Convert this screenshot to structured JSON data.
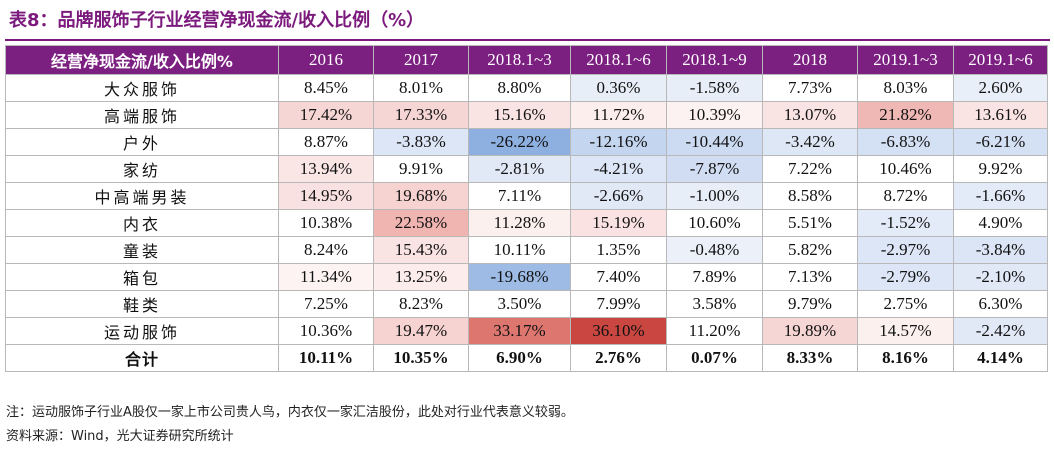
{
  "title": "表8：品牌服饰子行业经营净现金流/收入比例（%）",
  "table": {
    "header": [
      "经营净现金流/收入比例%",
      "2016",
      "2017",
      "2018.1~3",
      "2018.1~6",
      "2018.1~9",
      "2018",
      "2019.1~3",
      "2019.1~6"
    ],
    "rows": [
      {
        "label": "大众服饰",
        "values": [
          "8.45%",
          "8.01%",
          "8.80%",
          "0.36%",
          "-1.58%",
          "7.73%",
          "8.03%",
          "2.60%"
        ]
      },
      {
        "label": "高端服饰",
        "values": [
          "17.42%",
          "17.33%",
          "15.16%",
          "11.72%",
          "10.39%",
          "13.07%",
          "21.82%",
          "13.61%"
        ]
      },
      {
        "label": "户外",
        "values": [
          "8.87%",
          "-3.83%",
          "-26.22%",
          "-12.16%",
          "-10.44%",
          "-3.42%",
          "-6.83%",
          "-6.21%"
        ]
      },
      {
        "label": "家纺",
        "values": [
          "13.94%",
          "9.91%",
          "-2.81%",
          "-4.21%",
          "-7.87%",
          "7.22%",
          "10.46%",
          "9.92%"
        ]
      },
      {
        "label": "中高端男装",
        "values": [
          "14.95%",
          "19.68%",
          "7.11%",
          "-2.66%",
          "-1.00%",
          "8.58%",
          "8.72%",
          "-1.66%"
        ]
      },
      {
        "label": "内衣",
        "values": [
          "10.38%",
          "22.58%",
          "11.28%",
          "15.19%",
          "10.60%",
          "5.51%",
          "-1.52%",
          "4.90%"
        ]
      },
      {
        "label": "童装",
        "values": [
          "8.24%",
          "15.43%",
          "10.11%",
          "1.35%",
          "-0.48%",
          "5.82%",
          "-2.97%",
          "-3.84%"
        ]
      },
      {
        "label": "箱包",
        "values": [
          "11.34%",
          "13.25%",
          "-19.68%",
          "7.40%",
          "7.89%",
          "7.13%",
          "-2.79%",
          "-2.10%"
        ]
      },
      {
        "label": "鞋类",
        "values": [
          "7.25%",
          "8.23%",
          "3.50%",
          "7.99%",
          "3.58%",
          "9.79%",
          "2.75%",
          "6.30%"
        ]
      },
      {
        "label": "运动服饰",
        "values": [
          "10.36%",
          "19.47%",
          "33.17%",
          "36.10%",
          "11.20%",
          "19.89%",
          "14.57%",
          "-2.42%"
        ]
      }
    ],
    "total": {
      "label": "合计",
      "values": [
        "10.11%",
        "10.35%",
        "6.90%",
        "2.76%",
        "0.07%",
        "8.33%",
        "8.16%",
        "4.14%"
      ]
    },
    "cell_fill_colors": [
      [
        "#ffffff",
        "#ffffff",
        "#ffffff",
        "#e8eef8",
        "#e8eef8",
        "#ffffff",
        "#ffffff",
        "#e9eff9"
      ],
      [
        "#f6d6d4",
        "#f6d6d4",
        "#f9e4e3",
        "#fbeeed",
        "#fcf2f1",
        "#f9e4e3",
        "#f0b8b5",
        "#f9e4e3"
      ],
      [
        "#ffffff",
        "#dde6f6",
        "#8eb0e1",
        "#c4d5ef",
        "#ccdbf1",
        "#dee7f6",
        "#d4e0f3",
        "#d4e0f3"
      ],
      [
        "#f9e6e5",
        "#ffffff",
        "#e1e9f7",
        "#dde6f6",
        "#d0ddf2",
        "#ffffff",
        "#ffffff",
        "#ffffff"
      ],
      [
        "#f8e1e0",
        "#f6d3d1",
        "#ffffff",
        "#e1e9f7",
        "#e8eef8",
        "#ffffff",
        "#ffffff",
        "#e4ebf8"
      ],
      [
        "#ffffff",
        "#f0b4b1",
        "#fcf0ef",
        "#f9e2e1",
        "#ffffff",
        "#ffffff",
        "#e4ebf8",
        "#ffffff"
      ],
      [
        "#ffffff",
        "#f9e4e3",
        "#ffffff",
        "#ffffff",
        "#ebf0f9",
        "#ffffff",
        "#dde6f6",
        "#dbe5f5"
      ],
      [
        "#fdf3f3",
        "#fcecec",
        "#9dbbe4",
        "#ffffff",
        "#ffffff",
        "#ffffff",
        "#dde6f6",
        "#e1e9f7"
      ],
      [
        "#ffffff",
        "#ffffff",
        "#ffffff",
        "#ffffff",
        "#ffffff",
        "#ffffff",
        "#ffffff",
        "#ffffff"
      ],
      [
        "#ffffff",
        "#f6d3d1",
        "#de7670",
        "#c94740",
        "#ffffff",
        "#f6d6d4",
        "#fcf0ef",
        "#e1e9f7"
      ]
    ]
  },
  "notes": [
    "注：运动服饰子行业A股仅一家上市公司贵人鸟，内衣仅一家汇洁股份，此处对行业代表意义较弱。",
    "资料来源：Wind，光大证券研究所统计"
  ],
  "colors": {
    "title": "#7b1a7c",
    "header_bg": "#7b1f80",
    "header_text": "#ffffff"
  }
}
